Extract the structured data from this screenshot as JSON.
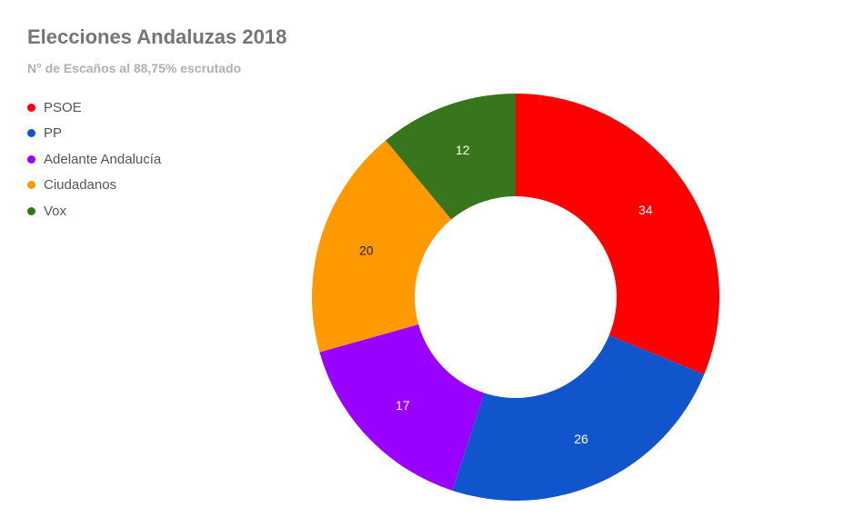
{
  "chart_data": {
    "type": "pie",
    "title": "Elecciones Andaluzas 2018",
    "subtitle": "N° de Escaños al 88,75% escrutado",
    "legend_position": "top-left",
    "donut": true,
    "series": [
      {
        "name": "PSOE",
        "value": 34,
        "color": "#ff0000",
        "label_color": "#ffffff"
      },
      {
        "name": "PP",
        "value": 26,
        "color": "#1155cc",
        "label_color": "#ffffff"
      },
      {
        "name": "Adelante Andalucía",
        "value": 17,
        "color": "#9900ff",
        "label_color": "#ffffff"
      },
      {
        "name": "Ciudadanos",
        "value": 20,
        "color": "#ff9900",
        "label_color": "#222222"
      },
      {
        "name": "Vox",
        "value": 12,
        "color": "#38761d",
        "label_color": "#ffffff"
      }
    ]
  }
}
